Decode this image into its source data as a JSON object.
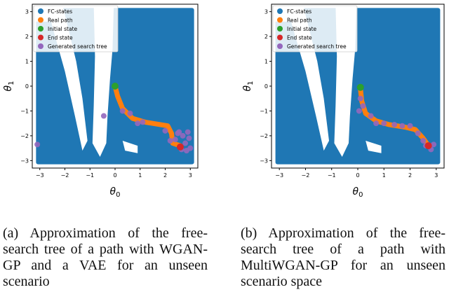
{
  "chart_data": [
    {
      "type": "scatter",
      "panel": "(a)",
      "xlabel": "θ0",
      "ylabel": "θ1",
      "xlim": [
        -3.3,
        3.3
      ],
      "ylim": [
        -3.3,
        3.3
      ],
      "xticks": [
        "−3",
        "−2",
        "−1",
        "0",
        "1",
        "2",
        "3"
      ],
      "yticks": [
        "3",
        "2",
        "1",
        "0",
        "−1",
        "−2",
        "−3"
      ],
      "xtick_values": [
        -3,
        -2,
        -1,
        0,
        1,
        2,
        3
      ],
      "ytick_values": [
        3,
        2,
        1,
        0,
        -1,
        -2,
        -3
      ],
      "grid": false,
      "legend_position": "top-left",
      "colors": {
        "fc": "#1f77b4",
        "path": "#ff7f0e",
        "init": "#2ca02c",
        "end": "#d62728",
        "tree": "#9467bd"
      },
      "legend": [
        "FC-states",
        "Real path",
        "Initial state",
        "End state",
        "Generated search tree"
      ],
      "real_path": [
        [
          0.0,
          0.0
        ],
        [
          0.1,
          -0.4
        ],
        [
          0.3,
          -0.9
        ],
        [
          0.7,
          -1.3
        ],
        [
          1.2,
          -1.45
        ],
        [
          1.8,
          -1.55
        ],
        [
          2.1,
          -1.6
        ],
        [
          2.25,
          -1.9
        ],
        [
          2.3,
          -2.3
        ],
        [
          2.6,
          -2.4
        ]
      ],
      "initial_state": [
        0.0,
        0.0
      ],
      "end_state": [
        2.6,
        -2.45
      ],
      "search_tree": [
        [
          -3.1,
          -2.35
        ],
        [
          -0.45,
          -1.2
        ],
        [
          0.3,
          -1.0
        ],
        [
          0.6,
          -1.1
        ],
        [
          0.9,
          -1.5
        ],
        [
          1.1,
          -1.45
        ],
        [
          2.5,
          -1.9
        ],
        [
          2.7,
          -2.0
        ],
        [
          2.9,
          -1.85
        ],
        [
          2.8,
          -2.3
        ],
        [
          3.0,
          -2.5
        ],
        [
          2.4,
          -2.15
        ],
        [
          2.65,
          -2.55
        ],
        [
          2.95,
          -2.1
        ],
        [
          2.2,
          -2.2
        ],
        [
          2.0,
          -1.8
        ],
        [
          2.55,
          -1.85
        ],
        [
          2.85,
          -2.6
        ]
      ]
    },
    {
      "type": "scatter",
      "panel": "(b)",
      "xlabel": "θ0",
      "ylabel": "θ1",
      "xlim": [
        -3.3,
        3.3
      ],
      "ylim": [
        -3.3,
        3.3
      ],
      "xticks": [
        "−3",
        "−2",
        "−1",
        "0",
        "1",
        "2",
        "3"
      ],
      "yticks": [
        "3",
        "2",
        "1",
        "0",
        "−1",
        "−2",
        "−3"
      ],
      "xtick_values": [
        -3,
        -2,
        -1,
        0,
        1,
        2,
        3
      ],
      "ytick_values": [
        3,
        2,
        1,
        0,
        -1,
        -2,
        -3
      ],
      "grid": false,
      "legend_position": "top-left",
      "colors": {
        "fc": "#1f77b4",
        "path": "#ff7f0e",
        "init": "#2ca02c",
        "end": "#d62728",
        "tree": "#9467bd"
      },
      "legend": [
        "FC-states",
        "Real path",
        "Initial state",
        "End state",
        "Generated search tree"
      ],
      "real_path": [
        [
          0.1,
          -0.1
        ],
        [
          0.15,
          -0.6
        ],
        [
          0.3,
          -1.1
        ],
        [
          0.7,
          -1.4
        ],
        [
          1.2,
          -1.55
        ],
        [
          1.8,
          -1.65
        ],
        [
          2.2,
          -1.75
        ],
        [
          2.5,
          -2.1
        ],
        [
          2.7,
          -2.4
        ]
      ],
      "initial_state": [
        0.1,
        -0.05
      ],
      "end_state": [
        2.7,
        -2.4
      ],
      "search_tree": [
        [
          0.1,
          -0.5
        ],
        [
          0.2,
          -0.8
        ],
        [
          0.05,
          -1.0
        ],
        [
          0.5,
          -1.2
        ],
        [
          0.7,
          -1.5
        ],
        [
          1.0,
          -1.5
        ],
        [
          1.4,
          -1.55
        ],
        [
          1.7,
          -1.6
        ],
        [
          2.0,
          -1.6
        ],
        [
          2.3,
          -1.9
        ],
        [
          2.5,
          -2.2
        ],
        [
          2.6,
          -2.4
        ],
        [
          2.8,
          -2.55
        ],
        [
          2.9,
          -2.35
        ]
      ]
    }
  ],
  "captions": {
    "a": "(a) Approximation of the free-search tree of a path with WGAN-GP and a VAE for an unseen scenario",
    "b": "(b) Approximation of the free-search tree of a path with MultiWGAN-GP for an unseen scenario space"
  }
}
